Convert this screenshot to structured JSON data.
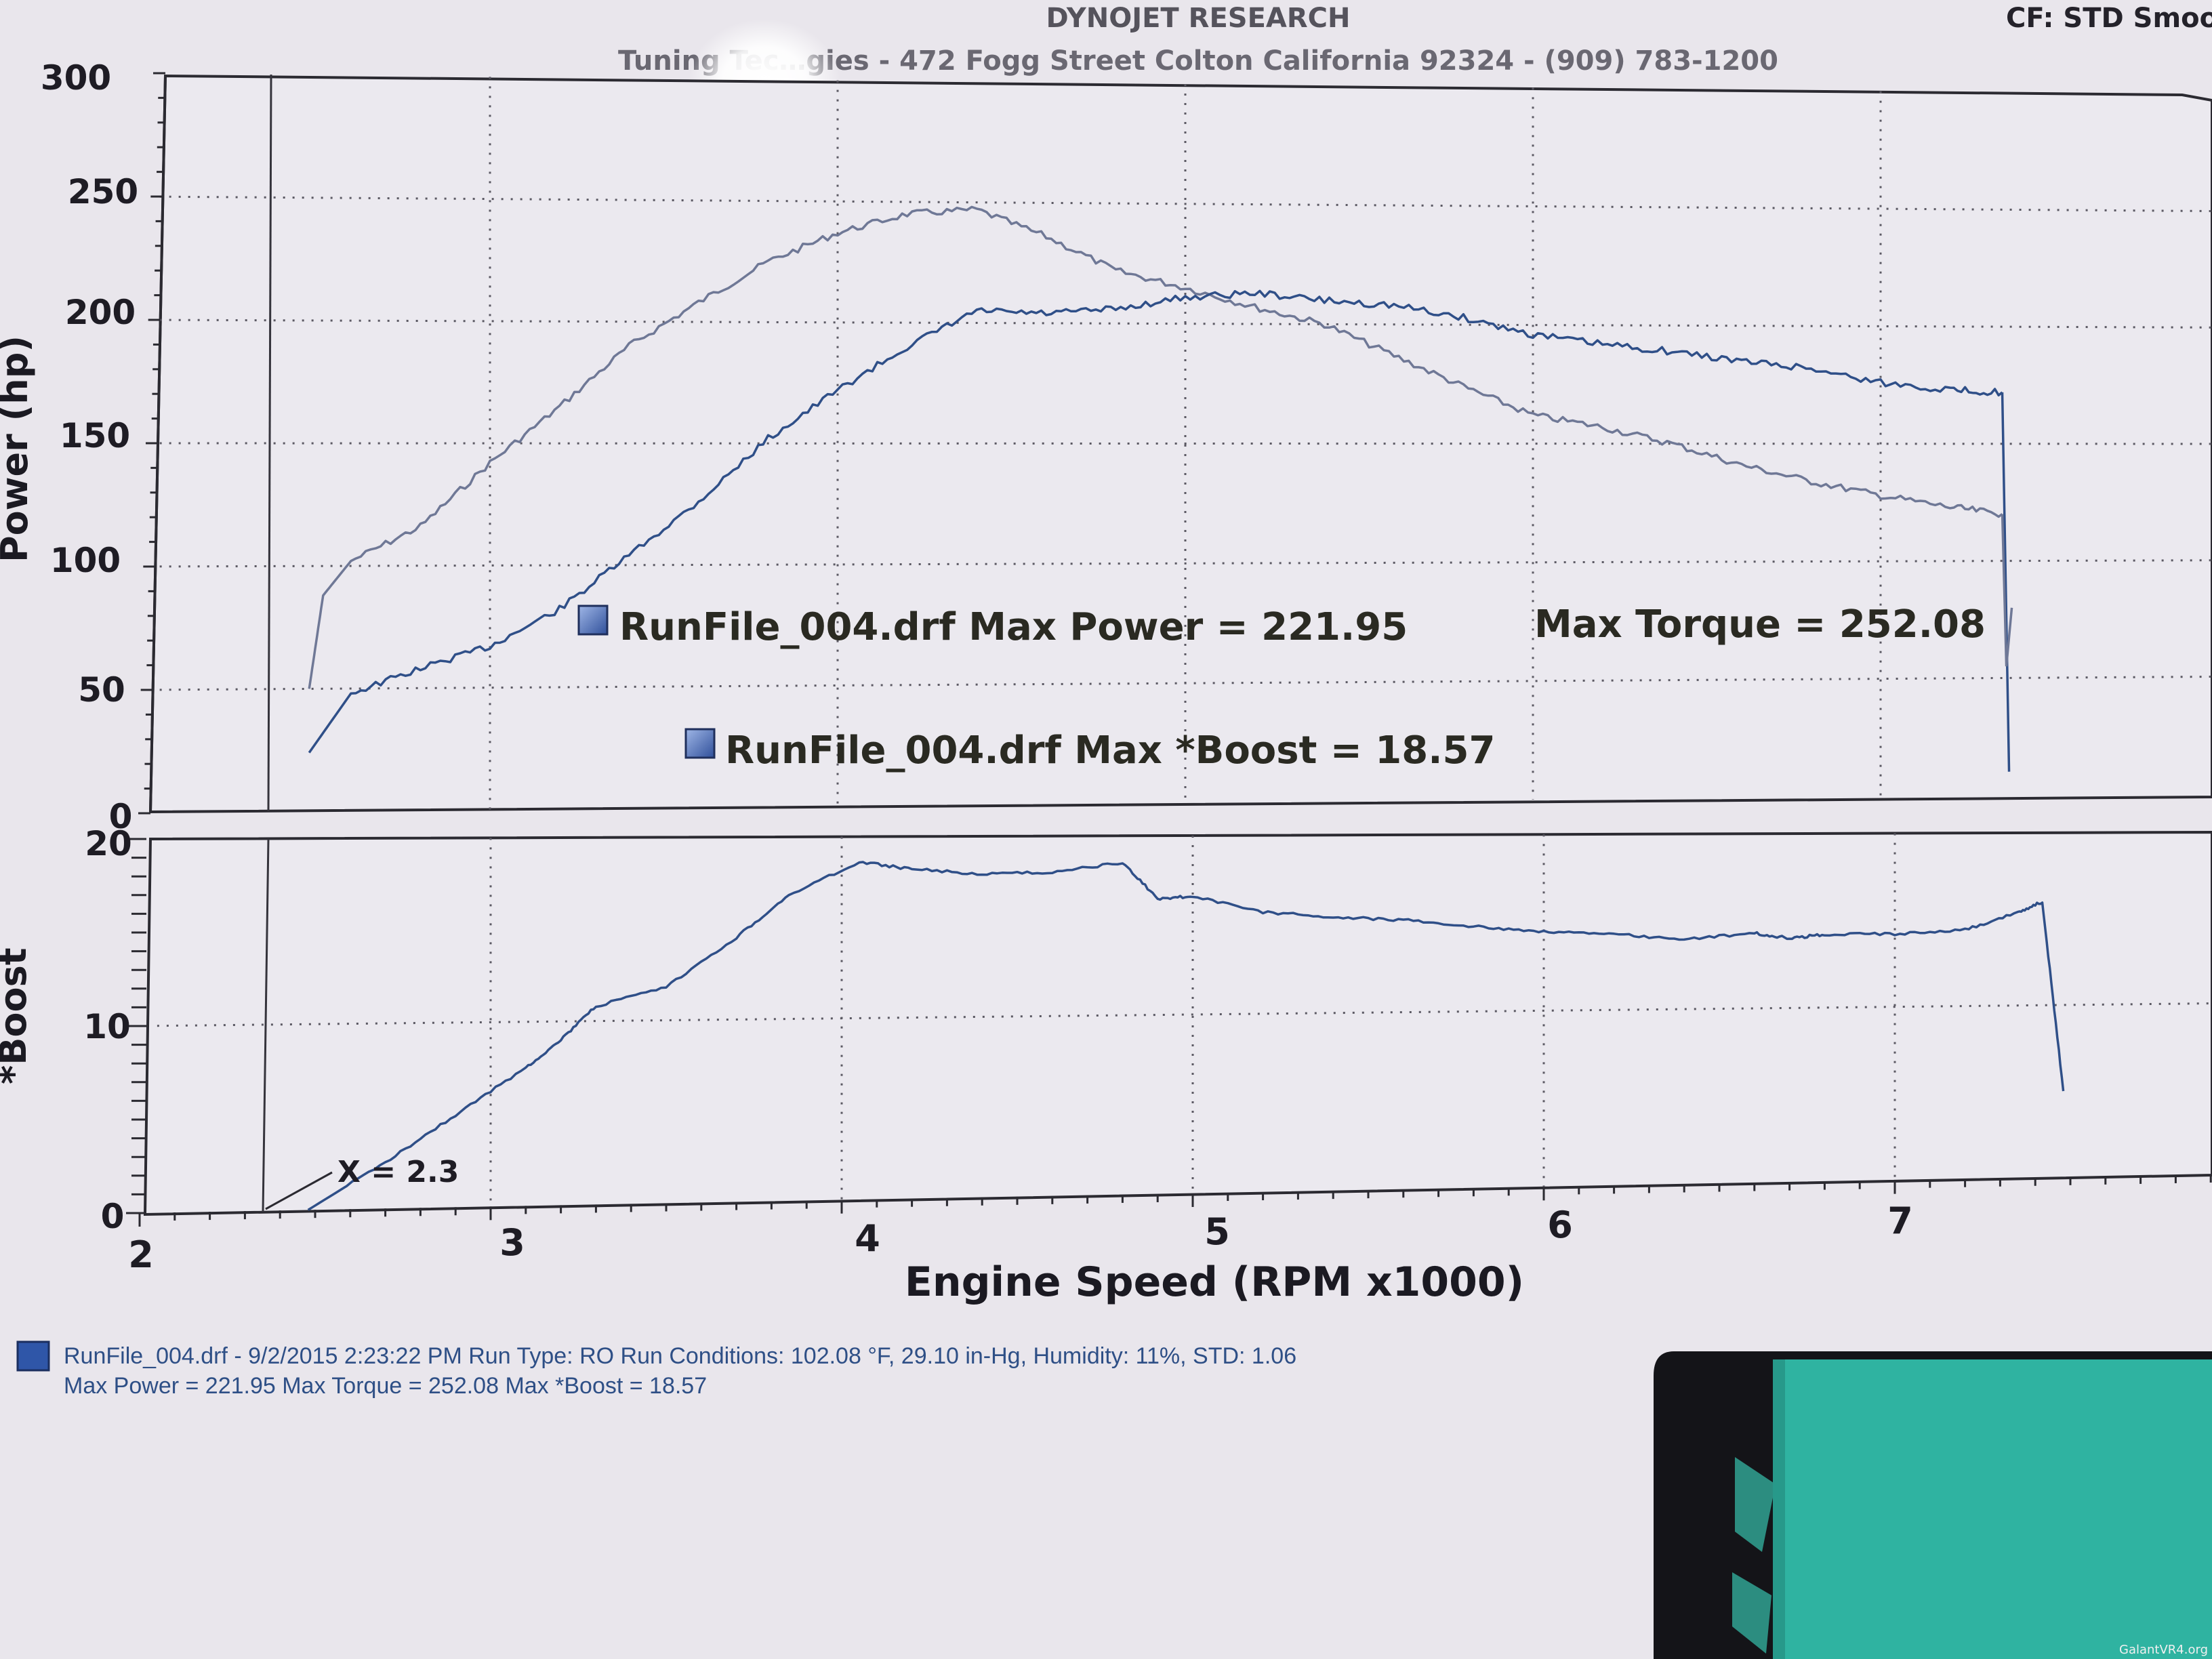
{
  "header": {
    "company": "DYNOJET RESEARCH",
    "address": "Tuning Tec…gies - 472 Fogg Street Colton California 92324 - (909) 783-1200",
    "cf_label": "CF: STD  Smoo"
  },
  "annotations": {
    "max_power_torque_line": "RunFile_004.drf Max Power = 221.95",
    "max_torque": "Max Torque = 252.08",
    "max_boost_line": "RunFile_004.drf Max *Boost = 18.57",
    "x_marker": "X = 2.3"
  },
  "footer": {
    "line1": "RunFile_004.drf - 9/2/2015 2:23:22 PM  Run Type: RO  Run Conditions: 102.08 °F, 29.10 in-Hg,  Humidity:  11%, STD: 1.06",
    "line2": "Max Power = 221.95  Max Torque = 252.08  Max *Boost = 18.57"
  },
  "watermark": "GalantVR4.org",
  "colors": {
    "paper": "#e9e6ec",
    "power_line": "#2f4f88",
    "torque_line": "#6f7896",
    "boost_line": "#2f4f88",
    "grid": "#5b5963",
    "legend_swatch": "#3e64b0",
    "folder": "#2fb3a1",
    "clipboard": "#141418"
  },
  "chart_data": [
    {
      "type": "line",
      "title": "",
      "xlabel": "Engine Speed (RPM x1000)",
      "ylabel": "Power (hp)",
      "xlim": [
        2,
        8
      ],
      "ylim": [
        0,
        300
      ],
      "x_ticks": [
        "2",
        "3",
        "4",
        "5",
        "6",
        "7"
      ],
      "y_ticks": [
        "0",
        "50",
        "100",
        "150",
        "200",
        "250",
        "300"
      ],
      "grid": true,
      "series": [
        {
          "name": "Power",
          "x": [
            2.48,
            2.6,
            2.8,
            3.0,
            3.2,
            3.4,
            3.6,
            3.8,
            4.0,
            4.2,
            4.4,
            4.6,
            4.8,
            5.0,
            5.2,
            5.4,
            5.6,
            5.8,
            6.0,
            6.2,
            6.4,
            6.6,
            6.8,
            7.0,
            7.2,
            7.35
          ],
          "y": [
            24,
            48,
            58,
            67,
            82,
            104,
            126,
            152,
            172,
            190,
            205,
            204,
            206,
            211,
            213,
            210,
            208,
            203,
            196,
            192,
            189,
            185,
            182,
            176,
            173,
            172
          ]
        },
        {
          "name": "Torque",
          "x": [
            2.48,
            2.52,
            2.6,
            2.8,
            3.0,
            3.2,
            3.4,
            3.6,
            3.8,
            4.0,
            4.2,
            4.4,
            4.6,
            4.8,
            5.0,
            5.2,
            5.4,
            5.6,
            5.8,
            6.0,
            6.2,
            6.4,
            6.6,
            6.8,
            7.0,
            7.2,
            7.35
          ],
          "y": [
            50,
            88,
            102,
            116,
            142,
            165,
            190,
            208,
            225,
            237,
            245,
            247,
            236,
            222,
            215,
            207,
            200,
            187,
            174,
            162,
            157,
            150,
            141,
            134,
            128,
            123,
            120
          ]
        }
      ]
    },
    {
      "type": "line",
      "title": "",
      "xlabel": "Engine Speed (RPM x1000)",
      "ylabel": "*Boost",
      "xlim": [
        2,
        8
      ],
      "ylim": [
        0,
        20
      ],
      "x_ticks": [
        "2",
        "3",
        "4",
        "5",
        "6",
        "7"
      ],
      "y_ticks": [
        "0",
        "10",
        "20"
      ],
      "grid": true,
      "series": [
        {
          "name": "*Boost",
          "x": [
            2.48,
            2.7,
            2.9,
            3.1,
            3.2,
            3.3,
            3.5,
            3.7,
            3.85,
            4.05,
            4.2,
            4.4,
            4.6,
            4.8,
            4.9,
            5.0,
            5.2,
            5.4,
            5.6,
            5.8,
            6.0,
            6.2,
            6.4,
            6.6,
            6.7,
            6.8,
            7.0,
            7.2,
            7.35,
            7.42,
            7.48
          ],
          "y": [
            0,
            2.5,
            5.0,
            7.5,
            9.0,
            10.8,
            11.8,
            14.5,
            16.8,
            18.6,
            18.2,
            17.9,
            18.0,
            18.5,
            16.5,
            16.6,
            15.7,
            15.4,
            15.2,
            14.8,
            14.5,
            14.3,
            14.0,
            14.3,
            14.0,
            14.2,
            14.2,
            14.4,
            15.4,
            16.0,
            5.0
          ]
        }
      ]
    }
  ]
}
